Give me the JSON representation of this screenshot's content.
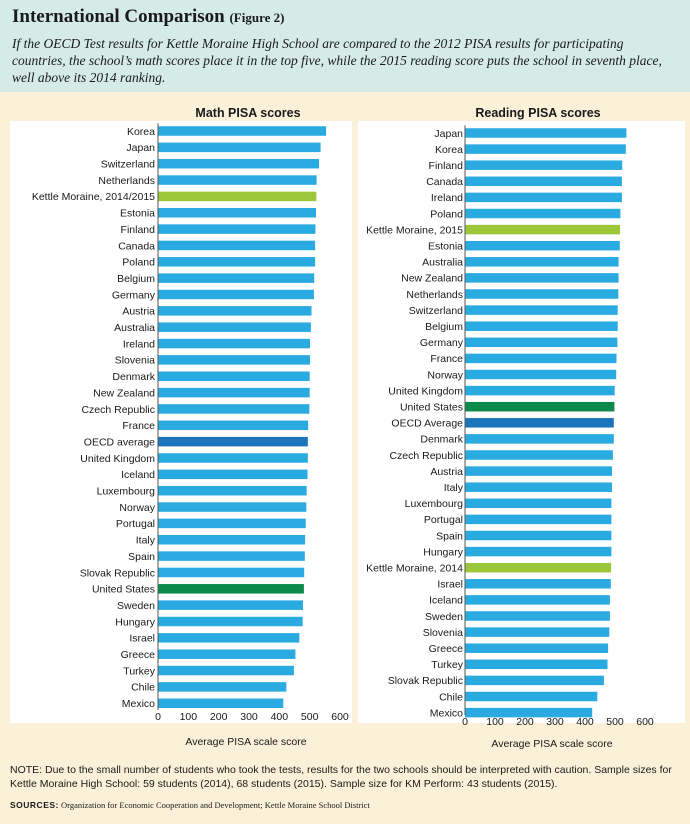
{
  "header": {
    "title": "International Comparison",
    "figure_label": "(Figure 2)",
    "subtitle": "If the OECD Test results for Kettle Moraine High School are compared to the 2012 PISA results for participating countries, the school’s math scores place it in the top five, while the 2015 reading score puts the school in seventh place, well above its 2014 ranking."
  },
  "colors": {
    "default_bar": "#29aae1",
    "kettle_moraine": "#9dc73b",
    "oecd_average": "#1b75bb",
    "united_states": "#0b8a4a",
    "header_bg": "#d4ebe8",
    "page_bg": "#fbf1d8"
  },
  "chart_data": [
    {
      "type": "bar",
      "orientation": "horizontal",
      "title": "Math PISA scores",
      "xlabel": "Average PISA scale score",
      "xlim": [
        0,
        600
      ],
      "xticks": [
        "0",
        "100",
        "200",
        "300",
        "400",
        "500",
        "600"
      ],
      "categories": [
        "Korea",
        "Japan",
        "Switzerland",
        "Netherlands",
        "Kettle Moraine, 2014/2015",
        "Estonia",
        "Finland",
        "Canada",
        "Poland",
        "Belgium",
        "Germany",
        "Austria",
        "Australia",
        "Ireland",
        "Slovenia",
        "Denmark",
        "New Zealand",
        "Czech Republic",
        "France",
        "OECD average",
        "United Kingdom",
        "Iceland",
        "Luxembourg",
        "Norway",
        "Portugal",
        "Italy",
        "Spain",
        "Slovak Republic",
        "United States",
        "Sweden",
        "Hungary",
        "Israel",
        "Greece",
        "Turkey",
        "Chile",
        "Mexico"
      ],
      "values": [
        554,
        536,
        531,
        523,
        522,
        521,
        519,
        518,
        518,
        515,
        514,
        506,
        504,
        501,
        501,
        500,
        500,
        499,
        495,
        494,
        494,
        493,
        490,
        489,
        487,
        485,
        484,
        482,
        481,
        478,
        477,
        466,
        453,
        448,
        423,
        413
      ],
      "highlight": {
        "Kettle Moraine, 2014/2015": "kettle_moraine",
        "OECD average": "oecd_average",
        "United States": "united_states"
      }
    },
    {
      "type": "bar",
      "orientation": "horizontal",
      "title": "Reading PISA scores",
      "xlabel": "Average PISA scale score",
      "xlim": [
        0,
        600
      ],
      "xticks": [
        "0",
        "100",
        "200",
        "300",
        "400",
        "500",
        "600"
      ],
      "categories": [
        "Japan",
        "Korea",
        "Finland",
        "Canada",
        "Ireland",
        "Poland",
        "Kettle Moraine, 2015",
        "Estonia",
        "Australia",
        "New Zealand",
        "Netherlands",
        "Switzerland",
        "Belgium",
        "Germany",
        "France",
        "Norway",
        "United Kingdom",
        "United States",
        "OECD Average",
        "Denmark",
        "Czech Republic",
        "Austria",
        "Italy",
        "Luxembourg",
        "Portugal",
        "Spain",
        "Hungary",
        "Kettle Moraine, 2014",
        "Israel",
        "Iceland",
        "Sweden",
        "Slovenia",
        "Greece",
        "Turkey",
        "Slovak Republic",
        "Chile",
        "Mexico"
      ],
      "values": [
        538,
        536,
        524,
        523,
        523,
        518,
        517,
        516,
        512,
        512,
        511,
        509,
        509,
        508,
        505,
        504,
        499,
        498,
        496,
        496,
        493,
        490,
        490,
        488,
        488,
        488,
        488,
        487,
        486,
        483,
        483,
        481,
        477,
        475,
        463,
        441,
        424
      ],
      "highlight": {
        "Kettle Moraine, 2015": "kettle_moraine",
        "Kettle Moraine, 2014": "kettle_moraine",
        "United States": "united_states",
        "OECD Average": "oecd_average"
      }
    }
  ],
  "footer": {
    "note": "NOTE: Due to the small number of students who took the tests, results for the two schools should be interpreted with caution. Sample sizes for Kettle Moraine High School: 59 students (2014), 68 students (2015). Sample size for KM Perform: 43 students (2015).",
    "sources_label": "SOURCES:",
    "sources_text": "Organization for Economic Cooperation and Development; Kettle Moraine School District"
  }
}
